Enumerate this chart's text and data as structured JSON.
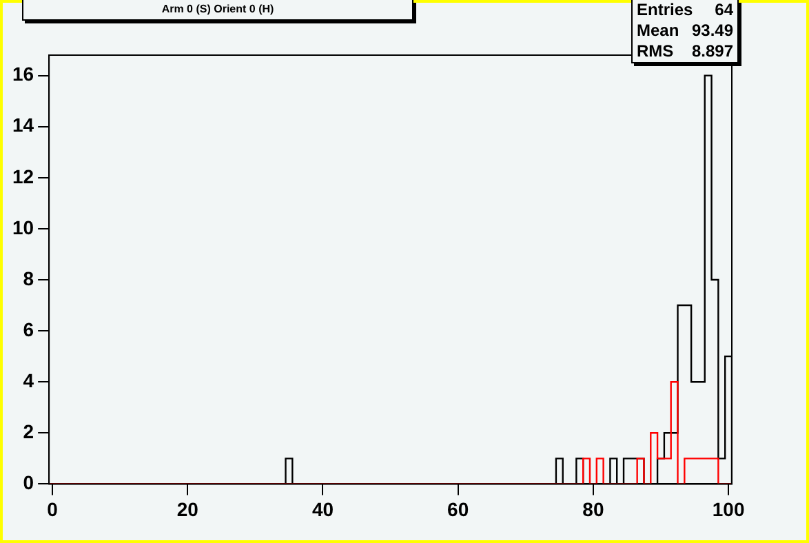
{
  "chart_data": {
    "type": "histogram",
    "title": "Arm 0 (S) Orient 0 (H)",
    "bins": [
      -0.5,
      0.5,
      1.5,
      2.5,
      3.5,
      4.5,
      5.5,
      6.5,
      7.5,
      8.5,
      9.5,
      10.5,
      11.5,
      12.5,
      13.5,
      14.5,
      15.5,
      16.5,
      17.5,
      18.5,
      19.5,
      20.5,
      21.5,
      22.5,
      23.5,
      24.5,
      25.5,
      26.5,
      27.5,
      28.5,
      29.5,
      30.5,
      31.5,
      32.5,
      33.5,
      34.5,
      35.5,
      36.5,
      37.5,
      38.5,
      39.5,
      40.5,
      41.5,
      42.5,
      43.5,
      44.5,
      45.5,
      46.5,
      47.5,
      48.5,
      49.5,
      50.5,
      51.5,
      52.5,
      53.5,
      54.5,
      55.5,
      56.5,
      57.5,
      58.5,
      59.5,
      60.5,
      61.5,
      62.5,
      63.5,
      64.5,
      65.5,
      66.5,
      67.5,
      68.5,
      69.5,
      70.5,
      71.5,
      72.5,
      73.5,
      74.5,
      75.5,
      76.5,
      77.5,
      78.5,
      79.5,
      80.5,
      81.5,
      82.5,
      83.5,
      84.5,
      85.5,
      86.5,
      87.5,
      88.5,
      89.5,
      90.5,
      91.5,
      92.5,
      93.5,
      94.5,
      95.5,
      96.5,
      97.5,
      98.5,
      99.5,
      100.5
    ],
    "series": [
      {
        "color": "#000000",
        "values": [
          0,
          0,
          0,
          0,
          0,
          0,
          0,
          0,
          0,
          0,
          0,
          0,
          0,
          0,
          0,
          0,
          0,
          0,
          0,
          0,
          0,
          0,
          0,
          0,
          0,
          0,
          0,
          0,
          0,
          0,
          0,
          0,
          0,
          0,
          0,
          1,
          0,
          0,
          0,
          0,
          0,
          0,
          0,
          0,
          0,
          0,
          0,
          0,
          0,
          0,
          0,
          0,
          0,
          0,
          0,
          0,
          0,
          0,
          0,
          0,
          0,
          0,
          0,
          0,
          0,
          0,
          0,
          0,
          0,
          0,
          0,
          0,
          0,
          0,
          0,
          1,
          0,
          0,
          1,
          0,
          0,
          0,
          0,
          1,
          0,
          1,
          1,
          1,
          0,
          0,
          1,
          2,
          2,
          7,
          7,
          4,
          4,
          16,
          8,
          1,
          5
        ]
      },
      {
        "color": "#ff0000",
        "values": [
          0,
          0,
          0,
          0,
          0,
          0,
          0,
          0,
          0,
          0,
          0,
          0,
          0,
          0,
          0,
          0,
          0,
          0,
          0,
          0,
          0,
          0,
          0,
          0,
          0,
          0,
          0,
          0,
          0,
          0,
          0,
          0,
          0,
          0,
          0,
          0,
          0,
          0,
          0,
          0,
          0,
          0,
          0,
          0,
          0,
          0,
          0,
          0,
          0,
          0,
          0,
          0,
          0,
          0,
          0,
          0,
          0,
          0,
          0,
          0,
          0,
          0,
          0,
          0,
          0,
          0,
          0,
          0,
          0,
          0,
          0,
          0,
          0,
          0,
          0,
          0,
          0,
          0,
          0,
          1,
          0,
          1,
          0,
          0,
          0,
          0,
          0,
          1,
          0,
          2,
          1,
          1,
          4,
          0,
          1,
          1,
          1,
          1,
          1,
          0,
          0
        ]
      }
    ],
    "xlim": [
      -0.5,
      100.5
    ],
    "xticks": [
      0,
      20,
      40,
      60,
      80,
      100
    ],
    "ylim": [
      0,
      16.8
    ],
    "yticks": [
      0,
      2,
      4,
      6,
      8,
      10,
      12,
      14,
      16
    ],
    "grid": false,
    "legend": false,
    "annotations": [
      "Entries 64",
      "Mean 93.49",
      "RMS 8.897"
    ]
  }
}
